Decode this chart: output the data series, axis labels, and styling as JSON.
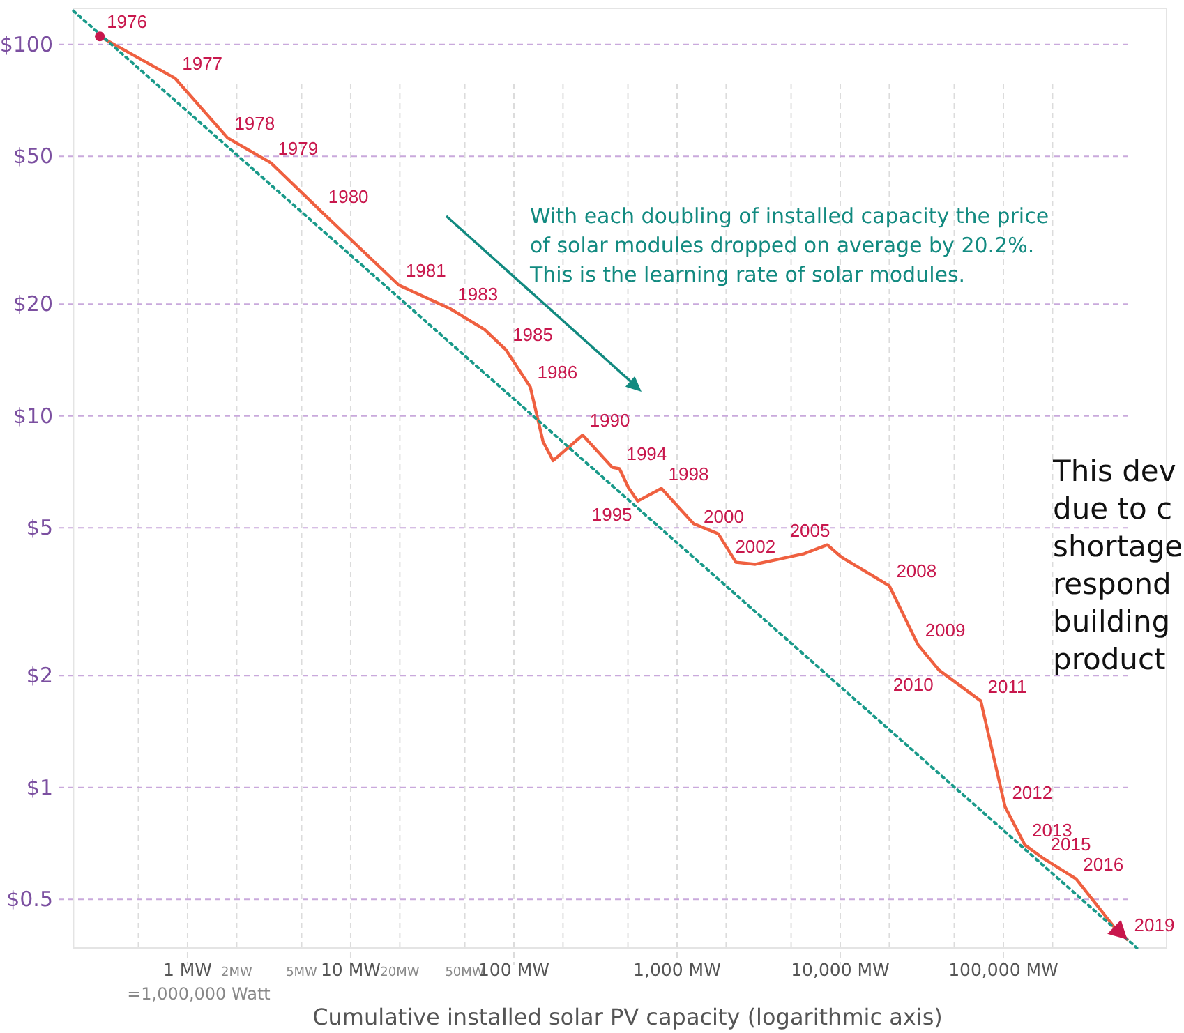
{
  "chart_data": {
    "type": "line",
    "x": [
      0.29,
      0.84,
      1.76,
      3.24,
      6.6,
      19.7,
      41,
      66,
      89,
      126,
      151,
      174,
      264,
      401,
      444,
      504,
      574,
      802,
      1262,
      1787,
      2296,
      3020,
      6012,
      8337,
      10160,
      20000,
      30000,
      40300,
      72700,
      102400,
      135600,
      176200,
      279000,
      471000,
      574000
    ],
    "series": [
      {
        "color": "#ef6040",
        "values": [
          105,
          81,
          56,
          48,
          35.5,
          22.5,
          19.4,
          17.1,
          15.1,
          11.97,
          8.52,
          7.58,
          8.88,
          7.27,
          7.21,
          6.41,
          5.9,
          6.38,
          5.13,
          4.82,
          4.04,
          3.99,
          4.26,
          4.5,
          4.17,
          3.49,
          2.42,
          2.07,
          1.71,
          0.887,
          0.7,
          0.644,
          0.568,
          0.424,
          0.39
        ]
      },
      {
        "type": "line",
        "color": "#1a9a8a",
        "line_style": "dotted",
        "x": [
          0.2,
          658000
        ],
        "values": [
          123,
          0.37
        ]
      }
    ],
    "log": "xy",
    "xlim": [
      0.2,
      1000000
    ],
    "ylim": [
      0.37,
      125
    ],
    "xticks": [
      {
        "value": 0.5,
        "label": null
      },
      {
        "value": 1,
        "label": "1 MW"
      },
      {
        "value": 2,
        "label": "2MW"
      },
      {
        "value": 5,
        "label": "5MW"
      },
      {
        "value": 10,
        "label": "10 MW"
      },
      {
        "value": 20,
        "label": "20MW"
      },
      {
        "value": 50,
        "label": "50MW"
      },
      {
        "value": 100,
        "label": "100 MW"
      },
      {
        "value": 200,
        "label": null
      },
      {
        "value": 500,
        "label": null
      },
      {
        "value": 1000,
        "label": "1,000 MW"
      },
      {
        "value": 2000,
        "label": null
      },
      {
        "value": 5000,
        "label": null
      },
      {
        "value": 10000,
        "label": "10,000 MW"
      },
      {
        "value": 20000,
        "label": null
      },
      {
        "value": 50000,
        "label": null
      },
      {
        "value": 100000,
        "label": "100,000 MW"
      },
      {
        "value": 200000,
        "label": null
      }
    ],
    "yticks": [
      {
        "value": 0.5,
        "label": "$0.5"
      },
      {
        "value": 1,
        "label": "$1"
      },
      {
        "value": 2,
        "label": "$2"
      },
      {
        "value": 5,
        "label": "$5"
      },
      {
        "value": 10,
        "label": "$10"
      },
      {
        "value": 20,
        "label": "$20"
      },
      {
        "value": 50,
        "label": "$50"
      },
      {
        "value": 100,
        "label": "$100"
      }
    ],
    "grid": true,
    "xlabel": "Cumulative installed solar PV capacity (logarithmic axis)",
    "annotations": [
      {
        "text": "1976",
        "x": 0.29,
        "y": 105
      },
      {
        "text": "1977",
        "x": 0.84,
        "y": 81
      },
      {
        "text": "1978",
        "x": 1.76,
        "y": 56
      },
      {
        "text": "1979",
        "x": 3.24,
        "y": 48
      },
      {
        "text": "1980",
        "x": 6.6,
        "y": 35.5
      },
      {
        "text": "1981",
        "x": 19.7,
        "y": 22.5
      },
      {
        "text": "1983",
        "x": 41,
        "y": 19.4
      },
      {
        "text": "1985",
        "x": 89,
        "y": 15.1
      },
      {
        "text": "1986",
        "x": 126,
        "y": 11.97
      },
      {
        "text": "1990",
        "x": 264,
        "y": 8.88
      },
      {
        "text": "1994",
        "x": 444,
        "y": 7.21
      },
      {
        "text": "1995",
        "x": 574,
        "y": 5.9
      },
      {
        "text": "1998",
        "x": 802,
        "y": 6.38
      },
      {
        "text": "2000",
        "x": 1787,
        "y": 4.82
      },
      {
        "text": "2002",
        "x": 3020,
        "y": 3.99
      },
      {
        "text": "2005",
        "x": 8337,
        "y": 4.5
      },
      {
        "text": "2008",
        "x": 20000,
        "y": 3.49
      },
      {
        "text": "2009",
        "x": 30000,
        "y": 2.42
      },
      {
        "text": "2010",
        "x": 40300,
        "y": 2.07
      },
      {
        "text": "2011",
        "x": 72700,
        "y": 1.71
      },
      {
        "text": "2012",
        "x": 102400,
        "y": 0.887
      },
      {
        "text": "2013",
        "x": 135600,
        "y": 0.7
      },
      {
        "text": "2015",
        "x": 176200,
        "y": 0.644
      },
      {
        "text": "2016",
        "x": 279000,
        "y": 0.568
      },
      {
        "text": "2019",
        "x": 574000,
        "y": 0.39
      },
      "With each doubling of installed capacity the price\nof solar modules dropped on average by 20.2%.\nThis is the learning rate of solar modules.",
      "=1,000,000 Watt",
      "This dev\ndue to c\nshortage\nrespond\nbuilding\nproduct"
    ]
  }
}
